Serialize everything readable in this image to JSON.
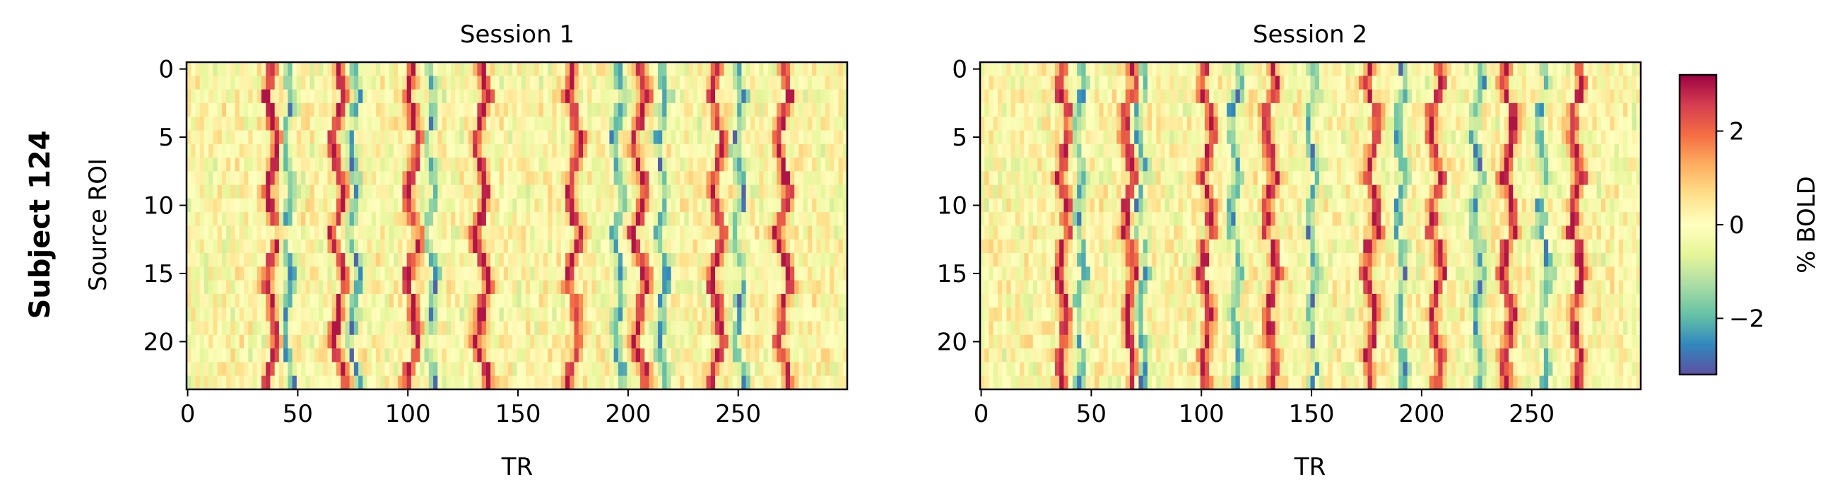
{
  "figure": {
    "row_label": "Subject 124"
  },
  "colorbar": {
    "label": "% BOLD",
    "range": [
      -3.2,
      3.2
    ],
    "ticks": [
      -2,
      0,
      2
    ],
    "tick_labels": [
      "−2",
      "0",
      "2"
    ],
    "colormap": [
      "#5e4fa2",
      "#3288bd",
      "#66c2a5",
      "#abdda4",
      "#e6f598",
      "#ffffbf",
      "#fee08b",
      "#fdae61",
      "#f46d43",
      "#d53e4f",
      "#9e0142"
    ]
  },
  "chart_data": [
    {
      "type": "heatmap",
      "title": "Session 1",
      "xlabel": "TR",
      "ylabel": "Source ROI",
      "xlim": [
        0,
        299
      ],
      "ylim": [
        23,
        0
      ],
      "xticks": [
        0,
        50,
        100,
        150,
        200,
        250
      ],
      "yticks": [
        0,
        5,
        10,
        15,
        20
      ],
      "n_rows": 24,
      "n_cols": 300,
      "peak_columns": [
        38,
        68,
        102,
        133,
        175,
        205,
        240,
        270
      ],
      "trough_columns": [
        45,
        75,
        110,
        195,
        215,
        250
      ],
      "value_range": [
        -3,
        3
      ]
    },
    {
      "type": "heatmap",
      "title": "Session 2",
      "xlabel": "TR",
      "ylabel": "",
      "xlim": [
        0,
        299
      ],
      "ylim": [
        23,
        0
      ],
      "xticks": [
        0,
        50,
        100,
        150,
        200,
        250
      ],
      "yticks": [
        0,
        5,
        10,
        15,
        20
      ],
      "n_rows": 24,
      "n_cols": 300,
      "peak_columns": [
        37,
        67,
        102,
        131,
        177,
        206,
        239,
        270
      ],
      "trough_columns": [
        44,
        72,
        115,
        150,
        190,
        225,
        255
      ],
      "value_range": [
        -3,
        3
      ]
    }
  ]
}
